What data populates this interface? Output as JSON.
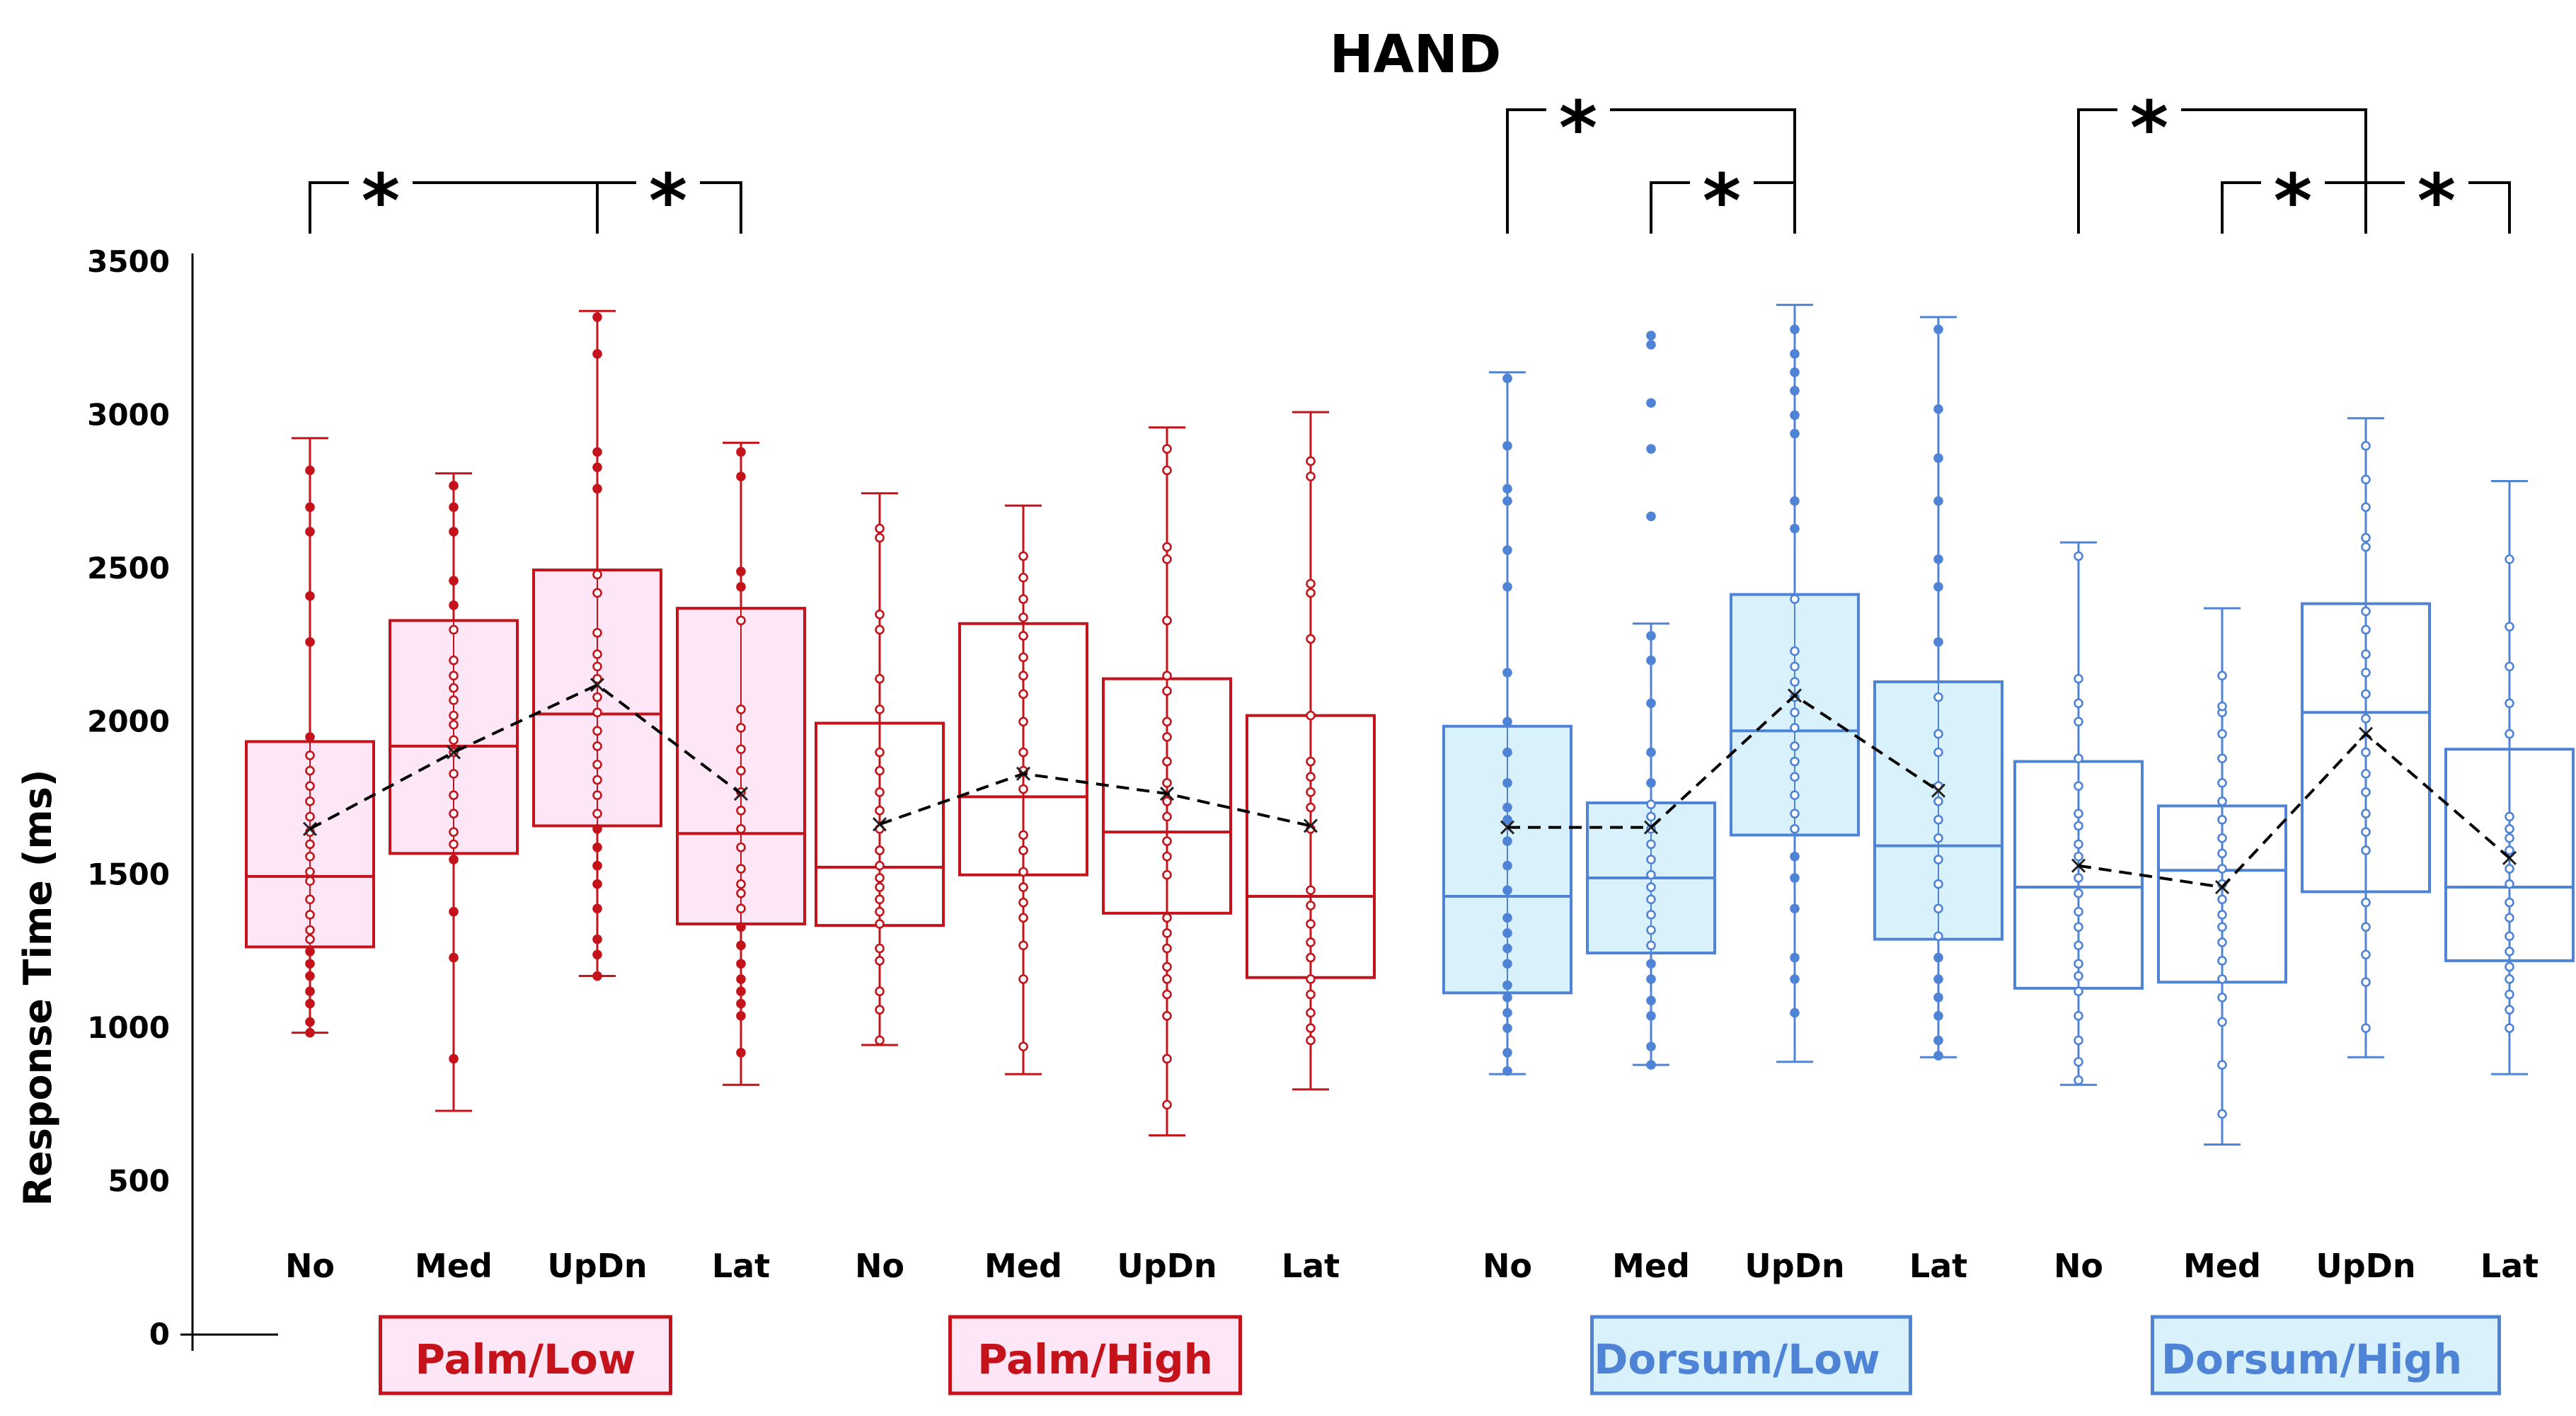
{
  "chart_data": {
    "type": "box",
    "title": "HAND",
    "ylabel": "Response Time (ms)",
    "xlabel": "",
    "ylim": [
      0,
      3500
    ],
    "yticks": [
      "0",
      "500",
      "1000",
      "1500",
      "2000",
      "2500",
      "3000",
      "3500"
    ],
    "palm_color": "#c4131b",
    "palm_fill": "#fde6f6",
    "dorsum_color": "#4f83d6",
    "dorsum_fill": "#d8f1fb",
    "groups": [
      {
        "name": "Palm/Low",
        "surface": "palm",
        "boxes": [
          {
            "label": "No",
            "min": 985,
            "q1": 1265,
            "median": 1495,
            "q3": 1935,
            "max": 2925,
            "mean": 1650,
            "points": [
              985,
              1020,
              1080,
              1120,
              1170,
              1210,
              1250,
              1290,
              1320,
              1370,
              1420,
              1480,
              1510,
              1560,
              1600,
              1640,
              1690,
              1740,
              1790,
              1840,
              1890,
              1950,
              2260,
              2410,
              2620,
              2700,
              2820
            ]
          },
          {
            "label": "Med",
            "min": 730,
            "q1": 1570,
            "median": 1920,
            "q3": 2330,
            "max": 2810,
            "mean": 1900,
            "points": [
              900,
              1230,
              1380,
              1550,
              1600,
              1640,
              1700,
              1760,
              1830,
              1900,
              1940,
              1990,
              2020,
              2070,
              2110,
              2150,
              2200,
              2300,
              2380,
              2460,
              2620,
              2700,
              2770
            ]
          },
          {
            "label": "UpDn",
            "min": 1170,
            "q1": 1660,
            "median": 2025,
            "q3": 2495,
            "max": 3340,
            "mean": 2120,
            "points": [
              1170,
              1240,
              1290,
              1390,
              1470,
              1530,
              1590,
              1650,
              1700,
              1760,
              1810,
              1860,
              1920,
              1970,
              2030,
              2080,
              2140,
              2180,
              2220,
              2290,
              2420,
              2480,
              2760,
              2830,
              2880,
              3200,
              3320
            ]
          },
          {
            "label": "Lat",
            "min": 815,
            "q1": 1340,
            "median": 1635,
            "q3": 2370,
            "max": 2910,
            "mean": 1765,
            "points": [
              920,
              1040,
              1080,
              1120,
              1160,
              1210,
              1270,
              1330,
              1390,
              1440,
              1470,
              1520,
              1590,
              1650,
              1710,
              1770,
              1840,
              1910,
              1980,
              2040,
              2330,
              2440,
              2490,
              2800,
              2880
            ]
          }
        ]
      },
      {
        "name": "Palm/High",
        "surface": "palm",
        "boxes": [
          {
            "label": "No",
            "min": 945,
            "q1": 1335,
            "median": 1525,
            "q3": 1995,
            "max": 2745,
            "mean": 1665,
            "points": [
              960,
              1060,
              1120,
              1220,
              1260,
              1340,
              1380,
              1420,
              1460,
              1490,
              1530,
              1580,
              1650,
              1710,
              1770,
              1840,
              1900,
              2040,
              2140,
              2300,
              2350,
              2600,
              2630
            ]
          },
          {
            "label": "Med",
            "min": 850,
            "q1": 1500,
            "median": 1755,
            "q3": 2320,
            "max": 2705,
            "mean": 1830,
            "points": [
              940,
              1160,
              1270,
              1360,
              1410,
              1460,
              1510,
              1580,
              1630,
              1780,
              1840,
              1900,
              2000,
              2090,
              2150,
              2210,
              2280,
              2340,
              2400,
              2470,
              2540
            ]
          },
          {
            "label": "UpDn",
            "min": 650,
            "q1": 1375,
            "median": 1640,
            "q3": 2140,
            "max": 2960,
            "mean": 1765,
            "points": [
              750,
              900,
              1040,
              1110,
              1160,
              1200,
              1260,
              1310,
              1360,
              1500,
              1560,
              1610,
              1690,
              1740,
              1800,
              1870,
              1950,
              2000,
              2100,
              2150,
              2330,
              2530,
              2570,
              2820,
              2890
            ]
          },
          {
            "label": "Lat",
            "min": 800,
            "q1": 1165,
            "median": 1430,
            "q3": 2020,
            "max": 3010,
            "mean": 1660,
            "points": [
              960,
              1000,
              1050,
              1110,
              1160,
              1230,
              1280,
              1340,
              1400,
              1450,
              1650,
              1720,
              1770,
              1820,
              1870,
              2020,
              2270,
              2420,
              2450,
              2800,
              2850
            ]
          }
        ]
      },
      {
        "name": "Dorsum/Low",
        "surface": "dorsum",
        "boxes": [
          {
            "label": "No",
            "min": 850,
            "q1": 1115,
            "median": 1430,
            "q3": 1985,
            "max": 3140,
            "mean": 1655,
            "points": [
              860,
              920,
              1000,
              1050,
              1100,
              1140,
              1210,
              1260,
              1310,
              1360,
              1450,
              1530,
              1610,
              1680,
              1720,
              1800,
              1900,
              2000,
              2160,
              2440,
              2560,
              2720,
              2760,
              2900,
              3120
            ]
          },
          {
            "label": "Med",
            "min": 880,
            "q1": 1245,
            "median": 1490,
            "q3": 1735,
            "max": 2320,
            "mean": 1655,
            "points": [
              880,
              940,
              1040,
              1090,
              1160,
              1210,
              1270,
              1320,
              1370,
              1420,
              1460,
              1500,
              1550,
              1600,
              1650,
              1690,
              1730,
              1800,
              1900,
              2060,
              2200,
              2280,
              2670,
              2890,
              3040,
              3230,
              3260
            ]
          },
          {
            "label": "UpDn",
            "min": 890,
            "q1": 1630,
            "median": 1970,
            "q3": 2415,
            "max": 3360,
            "mean": 2085,
            "points": [
              1050,
              1160,
              1230,
              1390,
              1490,
              1560,
              1650,
              1700,
              1760,
              1820,
              1870,
              1920,
              1980,
              2030,
              2080,
              2130,
              2180,
              2230,
              2400,
              2630,
              2720,
              2940,
              3000,
              3080,
              3140,
              3200,
              3280
            ]
          },
          {
            "label": "Lat",
            "min": 905,
            "q1": 1290,
            "median": 1595,
            "q3": 2130,
            "max": 3320,
            "mean": 1775,
            "points": [
              910,
              960,
              1040,
              1100,
              1160,
              1230,
              1300,
              1390,
              1470,
              1550,
              1620,
              1680,
              1740,
              1790,
              1900,
              1960,
              2080,
              2260,
              2440,
              2530,
              2720,
              2860,
              3020,
              3280
            ]
          }
        ]
      },
      {
        "name": "Dorsum/High",
        "surface": "dorsum",
        "boxes": [
          {
            "label": "No",
            "min": 815,
            "q1": 1130,
            "median": 1460,
            "q3": 1870,
            "max": 2585,
            "mean": 1530,
            "points": [
              830,
              890,
              960,
              1040,
              1120,
              1170,
              1210,
              1270,
              1330,
              1380,
              1440,
              1490,
              1560,
              1600,
              1660,
              1700,
              1790,
              1880,
              2000,
              2060,
              2140,
              2540
            ]
          },
          {
            "label": "Med",
            "min": 620,
            "q1": 1150,
            "median": 1515,
            "q3": 1725,
            "max": 2370,
            "mean": 1460,
            "points": [
              720,
              880,
              1020,
              1100,
              1160,
              1220,
              1280,
              1330,
              1370,
              1420,
              1470,
              1520,
              1570,
              1620,
              1680,
              1740,
              1800,
              1880,
              1960,
              2030,
              2050,
              2150
            ]
          },
          {
            "label": "UpDn",
            "min": 905,
            "q1": 1445,
            "median": 2030,
            "q3": 2385,
            "max": 2990,
            "mean": 1960,
            "points": [
              1000,
              1150,
              1240,
              1330,
              1410,
              1580,
              1640,
              1700,
              1770,
              1830,
              1900,
              2010,
              2090,
              2160,
              2220,
              2300,
              2360,
              2570,
              2600,
              2700,
              2790,
              2900
            ]
          },
          {
            "label": "Lat",
            "min": 850,
            "q1": 1220,
            "median": 1460,
            "q3": 1910,
            "max": 2785,
            "mean": 1555,
            "points": [
              1000,
              1060,
              1110,
              1160,
              1200,
              1250,
              1300,
              1360,
              1410,
              1470,
              1520,
              1580,
              1620,
              1650,
              1690,
              1960,
              2060,
              2180,
              2310,
              2530
            ]
          }
        ]
      }
    ],
    "significance": [
      {
        "group": 0,
        "from": 0,
        "to": 2,
        "label": "*",
        "level": 1
      },
      {
        "group": 0,
        "from": 2,
        "to": 3,
        "label": "*",
        "level": 1
      },
      {
        "group": 2,
        "from": 0,
        "to": 2,
        "label": "*",
        "level": 2
      },
      {
        "group": 2,
        "from": 1,
        "to": 2,
        "label": "*",
        "level": 1
      },
      {
        "group": 3,
        "from": 0,
        "to": 2,
        "label": "*",
        "level": 2
      },
      {
        "group": 3,
        "from": 1,
        "to": 2,
        "label": "*",
        "level": 1
      },
      {
        "group": 3,
        "from": 2,
        "to": 3,
        "label": "*",
        "level": 1
      }
    ]
  }
}
